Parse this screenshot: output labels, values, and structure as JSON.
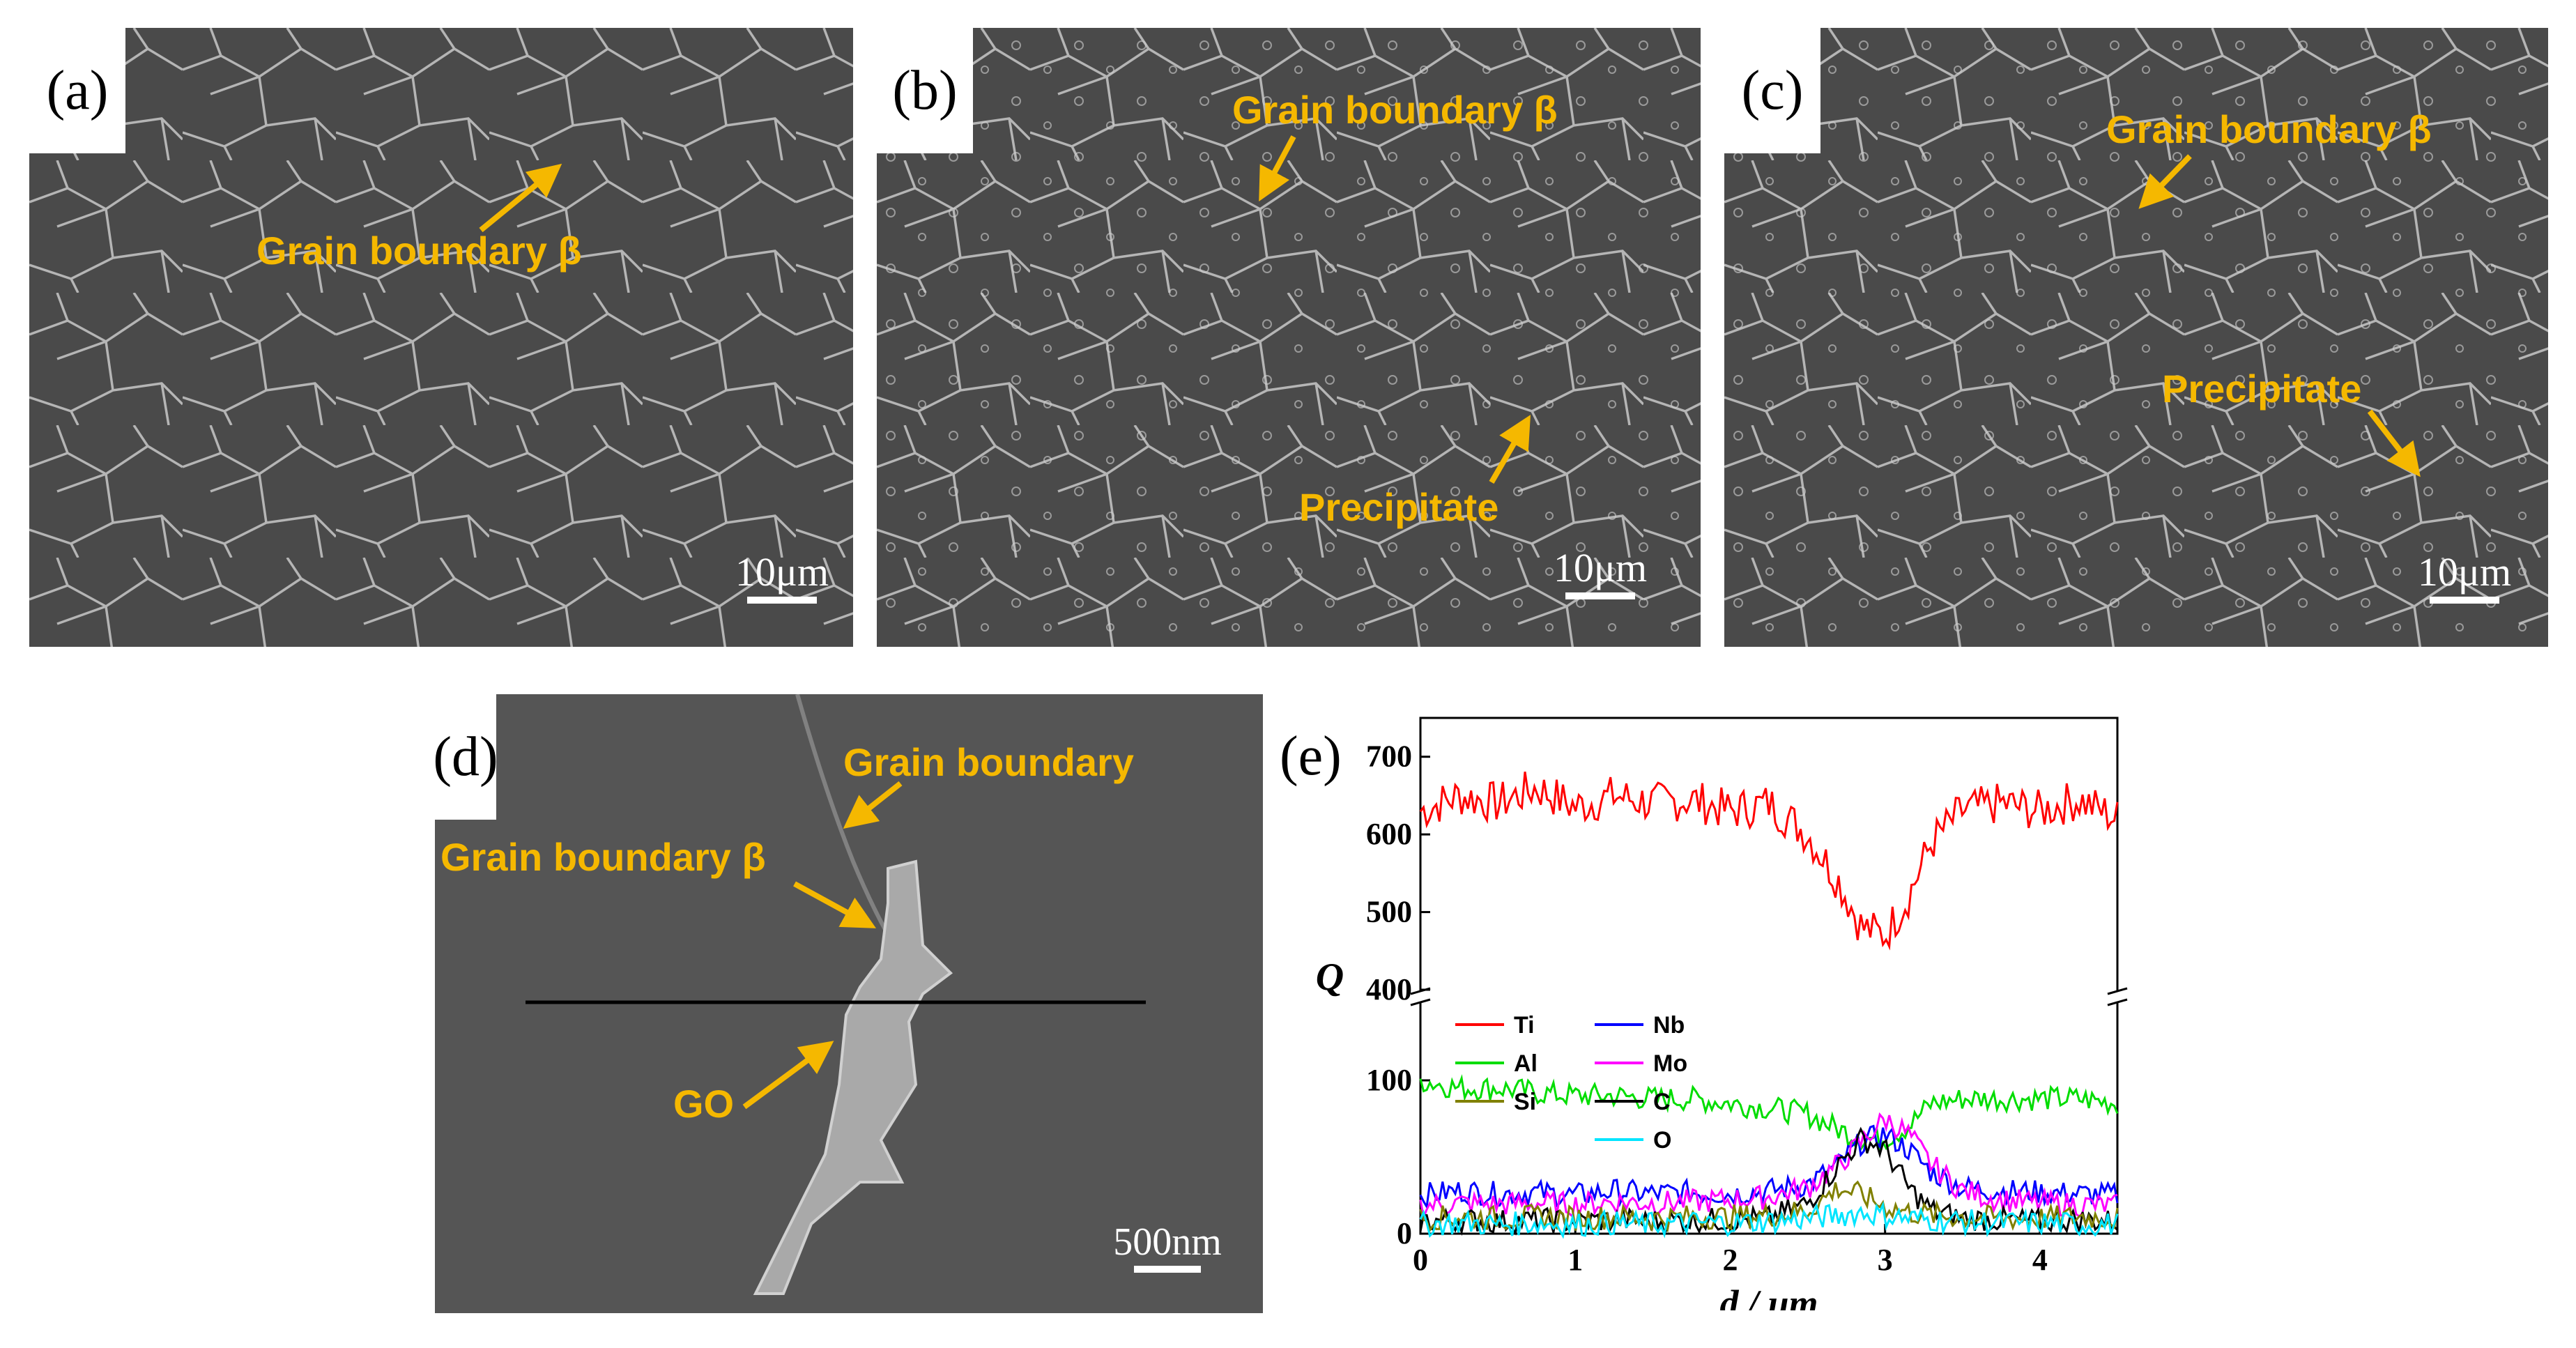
{
  "panels": {
    "a": {
      "tag": "(a)",
      "scale": "10μm",
      "annotations": [
        "Grain boundary β"
      ]
    },
    "b": {
      "tag": "(b)",
      "scale": "10μm",
      "annotations": [
        "Grain boundary β",
        "Precipitate"
      ]
    },
    "c": {
      "tag": "(c)",
      "scale": "10μm",
      "annotations": [
        "Grain boundary β",
        "Precipitate"
      ]
    },
    "d": {
      "tag": "(d)",
      "scale": "500nm",
      "annotations": [
        "Grain boundary",
        "Grain boundary β",
        "GO"
      ]
    },
    "e": {
      "tag": "(e)"
    }
  },
  "colors": {
    "annotation": "#f5b800",
    "sem_background": "#4a4a4a"
  },
  "chart_data": {
    "type": "line",
    "title": "",
    "xlabel": "d / μm",
    "ylabel": "Q",
    "xlim": [
      0,
      4.5
    ],
    "x_ticks": [
      "0",
      "1",
      "2",
      "3",
      "4"
    ],
    "y_break": true,
    "y_ticks_lower": [
      "0",
      "100"
    ],
    "y_ticks_upper": [
      "400",
      "500",
      "600",
      "700"
    ],
    "lower_range": [
      0,
      150
    ],
    "upper_range": [
      400,
      750
    ],
    "legend": [
      {
        "name": "Ti",
        "color": "#ff0000"
      },
      {
        "name": "Al",
        "color": "#00dd00"
      },
      {
        "name": "Si",
        "color": "#808000"
      },
      {
        "name": "Nb",
        "color": "#0000ff"
      },
      {
        "name": "Mo",
        "color": "#ff00ff"
      },
      {
        "name": "C",
        "color": "#000000"
      },
      {
        "name": "O",
        "color": "#00e5ff"
      }
    ],
    "series": [
      {
        "name": "Ti",
        "color": "#ff0000",
        "x": [
          0,
          0.25,
          0.5,
          0.75,
          1.0,
          1.25,
          1.5,
          1.75,
          2.0,
          2.25,
          2.5,
          2.7,
          2.85,
          3.0,
          3.15,
          3.3,
          3.5,
          3.75,
          4.0,
          4.25,
          4.5
        ],
        "values": [
          630,
          650,
          640,
          660,
          635,
          650,
          640,
          645,
          630,
          640,
          600,
          540,
          480,
          470,
          520,
          590,
          630,
          640,
          630,
          645,
          620
        ]
      },
      {
        "name": "Al",
        "color": "#00dd00",
        "x": [
          0,
          0.25,
          0.5,
          0.75,
          1.0,
          1.25,
          1.5,
          1.75,
          2.0,
          2.25,
          2.5,
          2.7,
          2.85,
          3.0,
          3.15,
          3.3,
          3.5,
          3.75,
          4.0,
          4.25,
          4.5
        ],
        "values": [
          100,
          95,
          95,
          92,
          90,
          90,
          88,
          88,
          85,
          82,
          78,
          68,
          62,
          62,
          70,
          85,
          88,
          88,
          88,
          88,
          85
        ]
      },
      {
        "name": "Nb",
        "color": "#0000ff",
        "x": [
          0,
          0.25,
          0.5,
          0.75,
          1.0,
          1.25,
          1.5,
          1.75,
          2.0,
          2.25,
          2.5,
          2.7,
          2.85,
          3.0,
          3.15,
          3.3,
          3.5,
          3.75,
          4.0,
          4.25,
          4.5
        ],
        "values": [
          25,
          28,
          26,
          27,
          25,
          28,
          26,
          27,
          26,
          28,
          32,
          45,
          60,
          65,
          55,
          40,
          30,
          28,
          27,
          26,
          25
        ]
      },
      {
        "name": "Mo",
        "color": "#ff00ff",
        "x": [
          0,
          0.25,
          0.5,
          0.75,
          1.0,
          1.25,
          1.5,
          1.75,
          2.0,
          2.25,
          2.5,
          2.7,
          2.85,
          3.0,
          3.15,
          3.3,
          3.5,
          3.75,
          4.0,
          4.25,
          4.5
        ],
        "values": [
          18,
          20,
          19,
          20,
          19,
          21,
          20,
          21,
          22,
          24,
          30,
          45,
          60,
          75,
          65,
          45,
          28,
          22,
          20,
          19,
          18
        ]
      },
      {
        "name": "C",
        "color": "#000000",
        "x": [
          0,
          0.25,
          0.5,
          0.75,
          1.0,
          1.25,
          1.5,
          1.75,
          2.0,
          2.25,
          2.5,
          2.7,
          2.85,
          3.0,
          3.15,
          3.3,
          3.5,
          3.75,
          4.0,
          4.25,
          4.5
        ],
        "values": [
          8,
          9,
          8,
          9,
          8,
          9,
          8,
          9,
          9,
          10,
          20,
          45,
          62,
          55,
          30,
          15,
          10,
          9,
          8,
          9,
          8
        ]
      },
      {
        "name": "Si",
        "color": "#808000",
        "x": [
          0,
          0.25,
          0.5,
          0.75,
          1.0,
          1.25,
          1.5,
          1.75,
          2.0,
          2.25,
          2.5,
          2.7,
          2.85,
          3.0,
          3.15,
          3.3,
          3.5,
          3.75,
          4.0,
          4.25,
          4.5
        ],
        "values": [
          10,
          11,
          10,
          11,
          10,
          11,
          10,
          11,
          11,
          12,
          15,
          30,
          25,
          18,
          14,
          12,
          11,
          10,
          10,
          11,
          10
        ]
      },
      {
        "name": "O",
        "color": "#00e5ff",
        "x": [
          0,
          0.25,
          0.5,
          0.75,
          1.0,
          1.25,
          1.5,
          1.75,
          2.0,
          2.25,
          2.5,
          2.7,
          2.85,
          3.0,
          3.15,
          3.3,
          3.5,
          3.75,
          4.0,
          4.25,
          4.5
        ],
        "values": [
          6,
          7,
          6,
          7,
          6,
          7,
          6,
          7,
          7,
          8,
          10,
          12,
          14,
          12,
          10,
          9,
          8,
          7,
          7,
          6,
          6
        ]
      }
    ]
  }
}
